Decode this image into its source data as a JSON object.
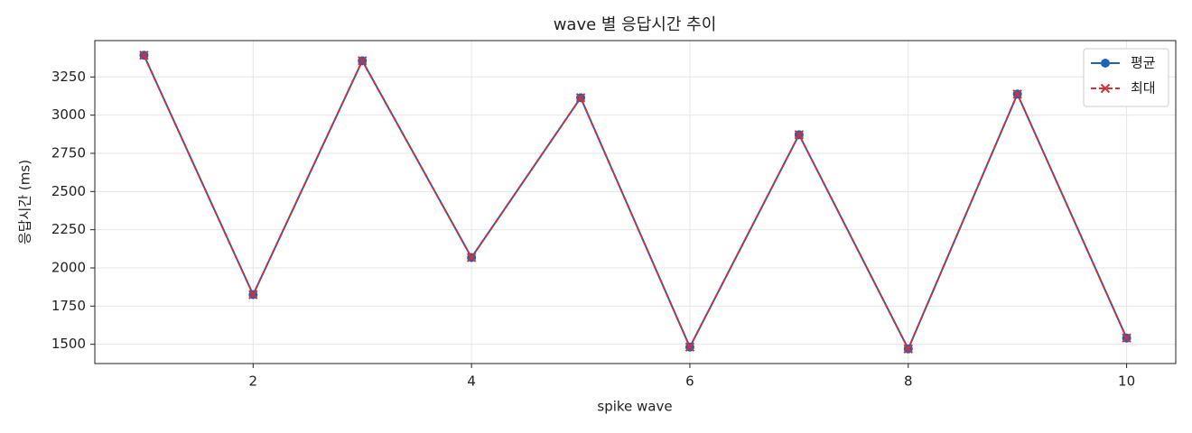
{
  "chart_data": {
    "type": "line",
    "title": "wave 별 응답시간 추이",
    "x_label": "spike wave",
    "y_label": "응답시간 (ms)",
    "x": [
      1,
      2,
      3,
      4,
      5,
      6,
      7,
      8,
      9,
      10
    ],
    "series": [
      {
        "name": "평균",
        "color": "#1f62b8",
        "marker": "circle",
        "dash": false,
        "values": [
          3392,
          1825,
          3356,
          2068,
          3114,
          1482,
          2872,
          1470,
          3138,
          1541
        ]
      },
      {
        "name": "최대",
        "color": "#d1323a",
        "marker": "x",
        "dash": true,
        "values": [
          3392,
          1825,
          3356,
          2068,
          3114,
          1482,
          2872,
          1470,
          3138,
          1541
        ]
      }
    ],
    "xlim": [
      0.55,
      10.45
    ],
    "ylim": [
      1374,
      3488
    ],
    "xticks": [
      2,
      4,
      6,
      8,
      10
    ],
    "yticks": [
      1500,
      1750,
      2000,
      2250,
      2500,
      2750,
      3000,
      3250
    ],
    "grid": true,
    "legend": "upper right"
  }
}
